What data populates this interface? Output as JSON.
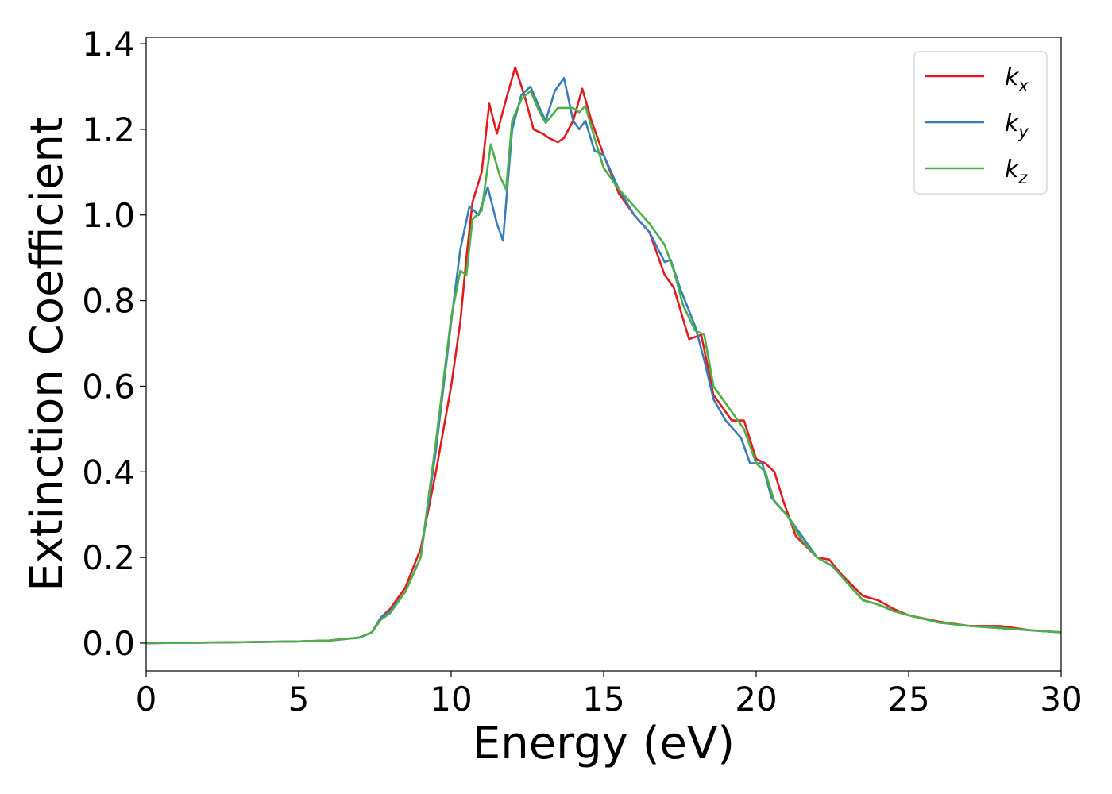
{
  "chart_data": {
    "type": "line",
    "title": "",
    "xlabel": "Energy (eV)",
    "ylabel": "Extinction Coefficient",
    "xlim": [
      0,
      30
    ],
    "ylim": [
      -0.065,
      1.415
    ],
    "xticks": [
      0,
      5,
      10,
      15,
      20,
      25,
      30
    ],
    "xtick_labels": [
      "0",
      "5",
      "10",
      "15",
      "20",
      "25",
      "30"
    ],
    "yticks": [
      0.0,
      0.2,
      0.4,
      0.6,
      0.8,
      1.0,
      1.2,
      1.4
    ],
    "ytick_labels": [
      "0.0",
      "0.2",
      "0.4",
      "0.6",
      "0.8",
      "1.0",
      "1.2",
      "1.4"
    ],
    "grid": false,
    "legend_position": "top-right",
    "series": [
      {
        "name": "k_x",
        "label_main": "k",
        "label_sub": "x",
        "color": "#e41a1c",
        "points": [
          [
            0,
            0
          ],
          [
            3,
            0.002
          ],
          [
            5,
            0.004
          ],
          [
            6,
            0.006
          ],
          [
            7,
            0.013
          ],
          [
            7.4,
            0.025
          ],
          [
            7.7,
            0.06
          ],
          [
            8,
            0.08
          ],
          [
            8.5,
            0.13
          ],
          [
            9,
            0.22
          ],
          [
            9.5,
            0.4
          ],
          [
            10,
            0.6
          ],
          [
            10.3,
            0.75
          ],
          [
            10.5,
            0.9
          ],
          [
            10.7,
            1.03
          ],
          [
            11,
            1.1
          ],
          [
            11.25,
            1.26
          ],
          [
            11.5,
            1.19
          ],
          [
            11.8,
            1.27
          ],
          [
            12.1,
            1.345
          ],
          [
            12.4,
            1.28
          ],
          [
            12.7,
            1.2
          ],
          [
            13,
            1.19
          ],
          [
            13.2,
            1.18
          ],
          [
            13.5,
            1.17
          ],
          [
            13.7,
            1.18
          ],
          [
            14,
            1.22
          ],
          [
            14.3,
            1.295
          ],
          [
            14.6,
            1.22
          ],
          [
            15,
            1.14
          ],
          [
            15.5,
            1.05
          ],
          [
            16,
            1.0
          ],
          [
            16.5,
            0.96
          ],
          [
            17,
            0.86
          ],
          [
            17.3,
            0.83
          ],
          [
            17.8,
            0.71
          ],
          [
            18.2,
            0.72
          ],
          [
            18.6,
            0.58
          ],
          [
            19.2,
            0.52
          ],
          [
            19.6,
            0.52
          ],
          [
            20,
            0.43
          ],
          [
            20.3,
            0.42
          ],
          [
            20.6,
            0.4
          ],
          [
            20.9,
            0.33
          ],
          [
            21.3,
            0.25
          ],
          [
            22,
            0.2
          ],
          [
            22.4,
            0.195
          ],
          [
            22.8,
            0.16
          ],
          [
            23.5,
            0.11
          ],
          [
            24,
            0.1
          ],
          [
            24.5,
            0.08
          ],
          [
            25,
            0.065
          ],
          [
            26,
            0.05
          ],
          [
            27,
            0.04
          ],
          [
            28,
            0.04
          ],
          [
            29,
            0.03
          ],
          [
            30,
            0.025
          ]
        ]
      },
      {
        "name": "k_y",
        "label_main": "k",
        "label_sub": "y",
        "color": "#377eb8",
        "points": [
          [
            0,
            0
          ],
          [
            3,
            0.002
          ],
          [
            5,
            0.004
          ],
          [
            6,
            0.006
          ],
          [
            7,
            0.013
          ],
          [
            7.4,
            0.025
          ],
          [
            7.7,
            0.06
          ],
          [
            8,
            0.075
          ],
          [
            8.5,
            0.12
          ],
          [
            9,
            0.2
          ],
          [
            9.5,
            0.45
          ],
          [
            10,
            0.75
          ],
          [
            10.3,
            0.92
          ],
          [
            10.6,
            1.02
          ],
          [
            10.9,
            1.0
          ],
          [
            11.2,
            1.065
          ],
          [
            11.5,
            0.98
          ],
          [
            11.7,
            0.94
          ],
          [
            12,
            1.2
          ],
          [
            12.3,
            1.28
          ],
          [
            12.6,
            1.3
          ],
          [
            12.9,
            1.25
          ],
          [
            13.1,
            1.22
          ],
          [
            13.4,
            1.29
          ],
          [
            13.7,
            1.32
          ],
          [
            14,
            1.22
          ],
          [
            14.2,
            1.2
          ],
          [
            14.4,
            1.22
          ],
          [
            14.7,
            1.15
          ],
          [
            15,
            1.14
          ],
          [
            15.5,
            1.06
          ],
          [
            16,
            1.0
          ],
          [
            16.5,
            0.96
          ],
          [
            17,
            0.89
          ],
          [
            17.2,
            0.895
          ],
          [
            17.5,
            0.83
          ],
          [
            18,
            0.74
          ],
          [
            18.3,
            0.66
          ],
          [
            18.6,
            0.57
          ],
          [
            19,
            0.52
          ],
          [
            19.5,
            0.48
          ],
          [
            19.8,
            0.42
          ],
          [
            20.2,
            0.42
          ],
          [
            20.5,
            0.34
          ],
          [
            21,
            0.3
          ],
          [
            21.3,
            0.27
          ],
          [
            22,
            0.2
          ],
          [
            22.5,
            0.18
          ],
          [
            23,
            0.14
          ],
          [
            23.5,
            0.1
          ],
          [
            24,
            0.09
          ],
          [
            24.5,
            0.075
          ],
          [
            25,
            0.065
          ],
          [
            26,
            0.048
          ],
          [
            27,
            0.04
          ],
          [
            28,
            0.035
          ],
          [
            29,
            0.03
          ],
          [
            30,
            0.025
          ]
        ]
      },
      {
        "name": "k_z",
        "label_main": "k",
        "label_sub": "z",
        "color": "#4daf4a",
        "points": [
          [
            0,
            0
          ],
          [
            3,
            0.002
          ],
          [
            5,
            0.004
          ],
          [
            6,
            0.006
          ],
          [
            7,
            0.013
          ],
          [
            7.4,
            0.025
          ],
          [
            7.7,
            0.055
          ],
          [
            8,
            0.07
          ],
          [
            8.5,
            0.12
          ],
          [
            9,
            0.2
          ],
          [
            9.5,
            0.47
          ],
          [
            10,
            0.76
          ],
          [
            10.3,
            0.87
          ],
          [
            10.5,
            0.86
          ],
          [
            10.7,
            0.99
          ],
          [
            11,
            1.01
          ],
          [
            11.3,
            1.165
          ],
          [
            11.6,
            1.09
          ],
          [
            11.8,
            1.06
          ],
          [
            12,
            1.22
          ],
          [
            12.3,
            1.27
          ],
          [
            12.6,
            1.29
          ],
          [
            12.9,
            1.24
          ],
          [
            13.1,
            1.215
          ],
          [
            13.5,
            1.25
          ],
          [
            13.8,
            1.25
          ],
          [
            14,
            1.25
          ],
          [
            14.2,
            1.24
          ],
          [
            14.4,
            1.255
          ],
          [
            14.7,
            1.18
          ],
          [
            15,
            1.11
          ],
          [
            15.5,
            1.06
          ],
          [
            16,
            1.02
          ],
          [
            16.5,
            0.98
          ],
          [
            17,
            0.93
          ],
          [
            17.3,
            0.87
          ],
          [
            17.6,
            0.79
          ],
          [
            18,
            0.73
          ],
          [
            18.3,
            0.72
          ],
          [
            18.6,
            0.6
          ],
          [
            19.2,
            0.54
          ],
          [
            19.6,
            0.5
          ],
          [
            20,
            0.42
          ],
          [
            20.3,
            0.4
          ],
          [
            20.6,
            0.33
          ],
          [
            21,
            0.3
          ],
          [
            21.5,
            0.24
          ],
          [
            22,
            0.2
          ],
          [
            22.5,
            0.18
          ],
          [
            23,
            0.14
          ],
          [
            23.5,
            0.1
          ],
          [
            24,
            0.09
          ],
          [
            24.5,
            0.075
          ],
          [
            25,
            0.065
          ],
          [
            26,
            0.048
          ],
          [
            27,
            0.04
          ],
          [
            28,
            0.035
          ],
          [
            29,
            0.03
          ],
          [
            30,
            0.025
          ]
        ]
      }
    ]
  }
}
